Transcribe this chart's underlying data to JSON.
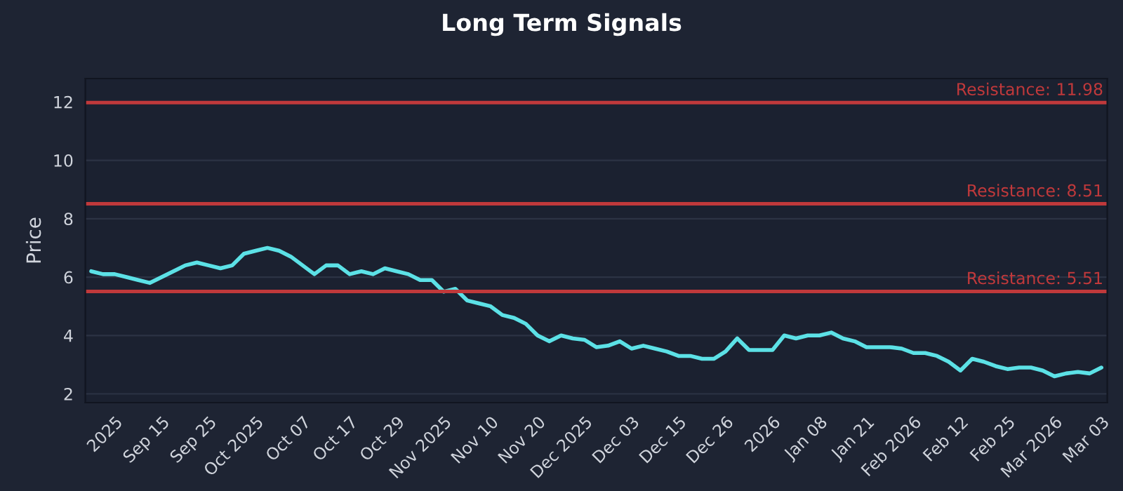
{
  "chart_data": {
    "type": "line",
    "title": "Long Term Signals",
    "ylabel": "Price",
    "categories": [
      null,
      null,
      "2025",
      null,
      null,
      null,
      "Sep 15",
      null,
      null,
      null,
      "Sep 25",
      null,
      null,
      null,
      "Oct 2025",
      null,
      null,
      null,
      "Oct 07",
      null,
      null,
      null,
      "Oct 17",
      null,
      null,
      null,
      "Oct 29",
      null,
      null,
      null,
      "Nov 2025",
      null,
      null,
      null,
      "Nov 10",
      null,
      null,
      null,
      "Nov 20",
      null,
      null,
      null,
      "Dec 2025",
      null,
      null,
      null,
      "Dec 03",
      null,
      null,
      null,
      "Dec 15",
      null,
      null,
      null,
      "Dec 26",
      null,
      null,
      null,
      "2026",
      null,
      null,
      null,
      "Jan 08",
      null,
      null,
      null,
      "Jan 21",
      null,
      null,
      null,
      "Feb 2026",
      null,
      null,
      null,
      "Feb 12",
      null,
      null,
      null,
      "Feb 25",
      null,
      null,
      null,
      "Mar 2026",
      null,
      null,
      null,
      "Mar 03"
    ],
    "series": [
      {
        "color": "#5ce1e6",
        "values": [
          6.2,
          6.1,
          6.1,
          6.0,
          5.9,
          5.8,
          6.0,
          6.2,
          6.4,
          6.5,
          6.4,
          6.3,
          6.4,
          6.8,
          6.9,
          7.0,
          6.9,
          6.7,
          6.4,
          6.1,
          6.4,
          6.4,
          6.1,
          6.2,
          6.1,
          6.3,
          6.2,
          6.1,
          5.9,
          5.9,
          5.5,
          5.6,
          5.2,
          5.1,
          5.0,
          4.7,
          4.6,
          4.4,
          4.0,
          3.8,
          4.0,
          3.9,
          3.85,
          3.6,
          3.65,
          3.8,
          3.55,
          3.65,
          3.55,
          3.45,
          3.3,
          3.3,
          3.2,
          3.2,
          3.45,
          3.9,
          3.5,
          3.5,
          3.5,
          4.0,
          3.9,
          4.0,
          4.0,
          4.1,
          3.9,
          3.8,
          3.6,
          3.6,
          3.6,
          3.55,
          3.4,
          3.4,
          3.3,
          3.1,
          2.8,
          3.2,
          3.1,
          2.95,
          2.85,
          2.9,
          2.9,
          2.8,
          2.6,
          2.7,
          2.75,
          2.7,
          2.9
        ]
      }
    ],
    "ylim": [
      1.7,
      12.8
    ],
    "yticks": [
      2,
      4,
      6,
      8,
      10,
      12
    ],
    "grid": "y",
    "legend": false,
    "line_style": "solid",
    "marker": "none",
    "ref_lines": [
      {
        "axis": "y",
        "value": 11.98,
        "label": "Resistance: 11.98",
        "color": "#c0393b"
      },
      {
        "axis": "y",
        "value": 8.51,
        "label": "Resistance: 8.51",
        "color": "#c0393b"
      },
      {
        "axis": "y",
        "value": 5.51,
        "label": "Resistance: 5.51",
        "color": "#c0393b"
      }
    ]
  }
}
